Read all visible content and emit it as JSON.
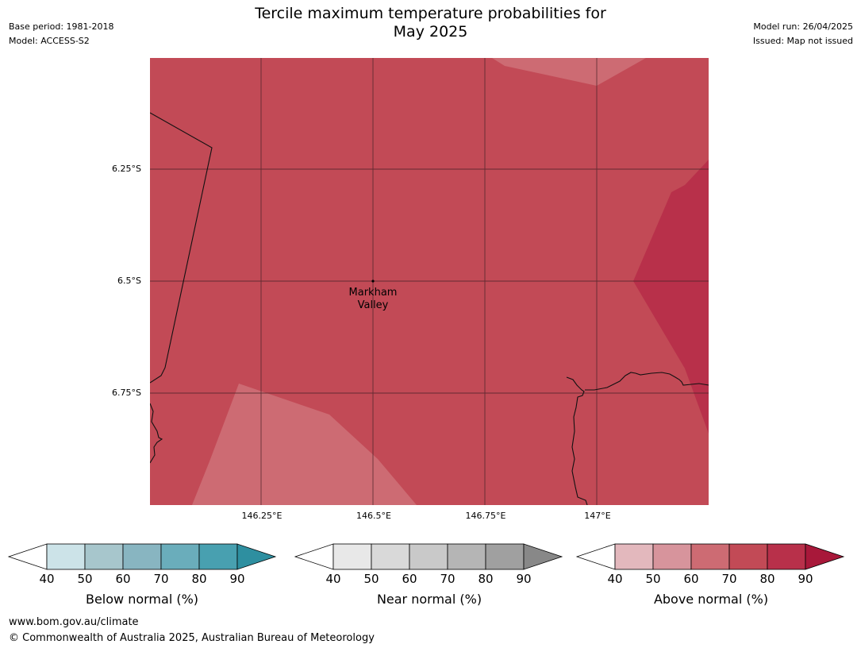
{
  "header": {
    "title_line1": "Tercile maximum temperature probabilities for",
    "title_line2": "May 2025",
    "base_period": "Base period: 1981-2018",
    "model": "Model: ACCESS-S2",
    "model_run": "Model run: 26/04/2025",
    "issued": "Issued: Map not issued"
  },
  "map": {
    "lat_labels": [
      "6.25°S",
      "6.5°S",
      "6.75°S"
    ],
    "lon_labels": [
      "146.25°E",
      "146.5°E",
      "146.75°E",
      "147°E"
    ],
    "place_name_line1": "Markham",
    "place_name_line2": "Valley",
    "colors": {
      "above_60_70": "#cd6b73",
      "above_70_80": "#c24a56",
      "above_80_90": "#b8304a"
    }
  },
  "colorbars": [
    {
      "label": "Below normal (%)",
      "ticks": [
        "40",
        "50",
        "60",
        "70",
        "80",
        "90"
      ],
      "colors": [
        "#cce3e8",
        "#a7c6cc",
        "#88b5c1",
        "#6aadbb",
        "#48a0b0",
        "#2e8fa0"
      ]
    },
    {
      "label": "Near normal (%)",
      "ticks": [
        "40",
        "50",
        "60",
        "70",
        "80",
        "90"
      ],
      "colors": [
        "#e8e8e8",
        "#d9d9d9",
        "#c9c9c9",
        "#b5b5b5",
        "#a0a0a0",
        "#888888"
      ]
    },
    {
      "label": "Above normal (%)",
      "ticks": [
        "40",
        "50",
        "60",
        "70",
        "80",
        "90"
      ],
      "colors": [
        "#e3b8bd",
        "#d7949c",
        "#cd6b73",
        "#c24a56",
        "#b8304a",
        "#a8183a"
      ]
    }
  ],
  "footer": {
    "url": "www.bom.gov.au/climate",
    "copyright": "© Commonwealth of Australia 2025, Australian Bureau of Meteorology"
  }
}
